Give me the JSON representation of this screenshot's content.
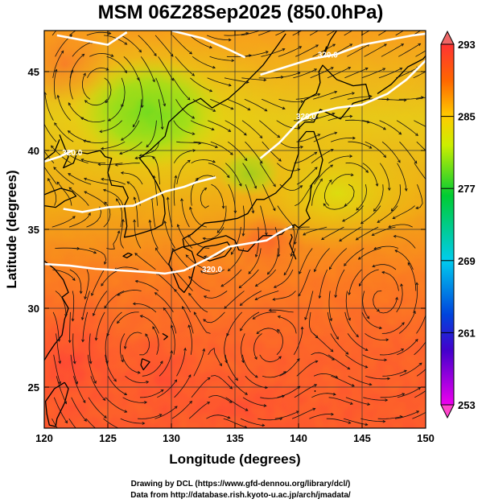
{
  "title": "MSM 06Z28Sep2025 (850.0hPa)",
  "xaxis": {
    "label": "Longitude (degrees)",
    "range": [
      120,
      150
    ],
    "ticks": [
      120,
      125,
      130,
      135,
      140,
      145,
      150
    ],
    "tick_labels": [
      "120",
      "125",
      "130",
      "135",
      "140",
      "145",
      "150"
    ]
  },
  "yaxis": {
    "label": "Latitude  (degrees)",
    "range": [
      22.4,
      47.6
    ],
    "ticks": [
      25,
      30,
      35,
      40,
      45
    ],
    "tick_labels": [
      "25",
      "30",
      "35",
      "40",
      "45"
    ]
  },
  "colorbar": {
    "range": [
      253,
      293
    ],
    "ticks": [
      253,
      261,
      269,
      277,
      285,
      293
    ],
    "tick_labels": [
      "253",
      "261",
      "269",
      "277",
      "285",
      "293"
    ],
    "colors": [
      "#ee00ee",
      "#0000cc",
      "#00ccff",
      "#00cc33",
      "#ccff00",
      "#ff6600",
      "#ff3333"
    ]
  },
  "contours": {
    "color": "#ffffff",
    "label": "320.0",
    "lines": [
      {
        "points": [
          [
            120,
            32.8
          ],
          [
            122,
            32.7
          ],
          [
            124,
            32.5
          ],
          [
            126,
            32.4
          ],
          [
            128,
            32.3
          ],
          [
            129.5,
            32.2
          ],
          [
            131,
            32.4
          ],
          [
            133,
            33.2
          ],
          [
            134.5,
            33.9
          ],
          [
            136,
            34.1
          ],
          [
            137.5,
            34.3
          ],
          [
            138.5,
            34.8
          ],
          [
            139.5,
            35.2
          ]
        ]
      },
      {
        "points": [
          [
            121.5,
            36.3
          ],
          [
            123,
            36.1
          ],
          [
            125,
            36.4
          ],
          [
            127,
            36.5
          ],
          [
            129.5,
            37.4
          ],
          [
            131,
            37.7
          ],
          [
            132,
            38.0
          ],
          [
            133.5,
            38.3
          ]
        ]
      },
      {
        "points": [
          [
            137,
            39.5
          ],
          [
            138.5,
            40.5
          ],
          [
            140,
            41.8
          ],
          [
            141,
            42.3
          ],
          [
            143,
            42.7
          ],
          [
            145,
            42.9
          ],
          [
            147,
            43.6
          ],
          [
            148.5,
            44.5
          ],
          [
            150,
            45.7
          ]
        ]
      },
      {
        "points": [
          [
            137,
            44.8
          ],
          [
            139,
            45.3
          ],
          [
            141,
            45.8
          ],
          [
            143,
            46.1
          ],
          [
            145,
            46.7
          ],
          [
            147,
            47.0
          ],
          [
            149,
            47.3
          ],
          [
            150,
            47.4
          ]
        ]
      },
      {
        "points": [
          [
            120,
            39.3
          ],
          [
            121.2,
            39.6
          ],
          [
            122.2,
            40.0
          ]
        ]
      },
      {
        "points": [
          [
            121,
            47.3
          ],
          [
            123,
            47.0
          ],
          [
            125,
            46.7
          ],
          [
            126.5,
            47.5
          ]
        ]
      },
      {
        "points": [
          [
            130,
            47.6
          ],
          [
            132.5,
            47.1
          ],
          [
            134.5,
            46.4
          ],
          [
            135.8,
            45.9
          ]
        ]
      }
    ],
    "label_positions": [
      {
        "text": "320.0",
        "lon": 133.2,
        "lat": 32.3
      },
      {
        "text": "320.0",
        "lon": 140.6,
        "lat": 42.0
      },
      {
        "text": "320.0",
        "lon": 122.2,
        "lat": 39.7
      },
      {
        "text": "320.0",
        "lon": 142.3,
        "lat": 45.9
      }
    ]
  },
  "credits": {
    "line1": "Drawing by DCL (https://www.gfd-dennou.org/library/dcl/)",
    "line2": "Data from http://database.rish.kyoto-u.ac.jp/arch/jmadata/"
  }
}
